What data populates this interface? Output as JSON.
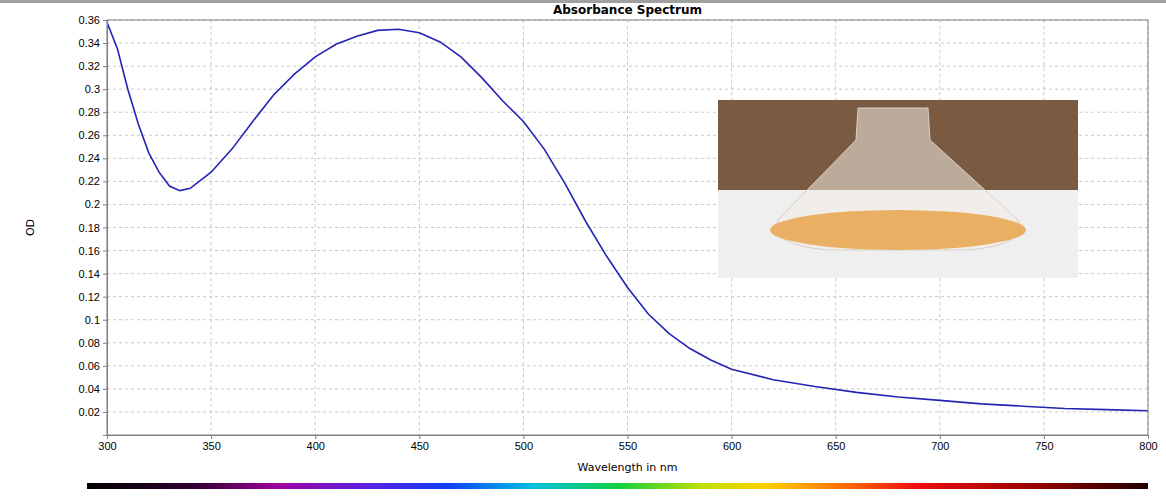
{
  "chart_data": {
    "type": "line",
    "title": "Absorbance Spectrum",
    "x_label": "Wavelength in nm",
    "y_label": "OD",
    "x": [
      300,
      305,
      310,
      315,
      320,
      325,
      330,
      335,
      340,
      350,
      360,
      370,
      380,
      390,
      400,
      410,
      420,
      430,
      440,
      450,
      460,
      470,
      480,
      490,
      500,
      510,
      520,
      530,
      540,
      550,
      560,
      570,
      580,
      590,
      600,
      620,
      640,
      660,
      680,
      700,
      720,
      740,
      760,
      780,
      800
    ],
    "values": [
      0.358,
      0.335,
      0.3,
      0.27,
      0.245,
      0.228,
      0.216,
      0.212,
      0.214,
      0.228,
      0.248,
      0.272,
      0.295,
      0.313,
      0.328,
      0.339,
      0.346,
      0.351,
      0.352,
      0.349,
      0.341,
      0.328,
      0.31,
      0.29,
      0.272,
      0.248,
      0.218,
      0.185,
      0.155,
      0.128,
      0.105,
      0.088,
      0.075,
      0.065,
      0.057,
      0.048,
      0.042,
      0.037,
      0.033,
      0.03,
      0.027,
      0.025,
      0.023,
      0.022,
      0.021
    ],
    "color": "#2323b4",
    "xlim": [
      300,
      800
    ],
    "xticks": [
      300,
      350,
      400,
      450,
      500,
      550,
      600,
      650,
      700,
      750,
      800
    ],
    "ylim": [
      0,
      0.36
    ],
    "yticks": [
      0.02,
      0.04,
      0.06,
      0.08,
      0.1,
      0.12,
      0.14,
      0.16,
      0.18,
      0.2,
      0.22,
      0.24,
      0.26,
      0.28,
      0.3,
      0.32,
      0.34,
      0.36
    ],
    "grid": true
  }
}
